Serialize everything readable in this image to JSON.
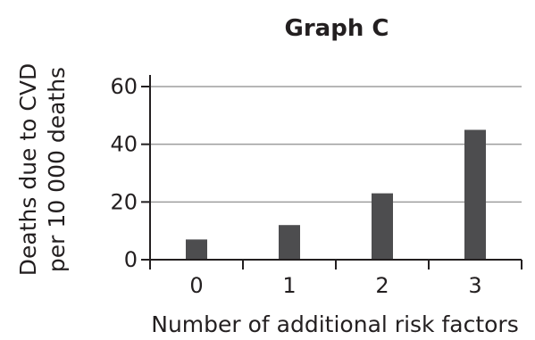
{
  "chart_data": {
    "type": "bar",
    "title": "Graph C",
    "xlabel": "Number of additional risk factors",
    "ylabel_lines": [
      "Deaths due to CVD",
      "per 10 000 deaths"
    ],
    "categories": [
      "0",
      "1",
      "2",
      "3"
    ],
    "values": [
      7,
      12,
      23,
      45
    ],
    "ylim": [
      0,
      60
    ],
    "yticks": [
      "0",
      "20",
      "40",
      "60"
    ],
    "grid": true,
    "legend": "none",
    "colors": {
      "bar": "#4d4d4f",
      "axis": "#231f20",
      "grid": "#9d9d9d",
      "text": "#231f20"
    }
  }
}
